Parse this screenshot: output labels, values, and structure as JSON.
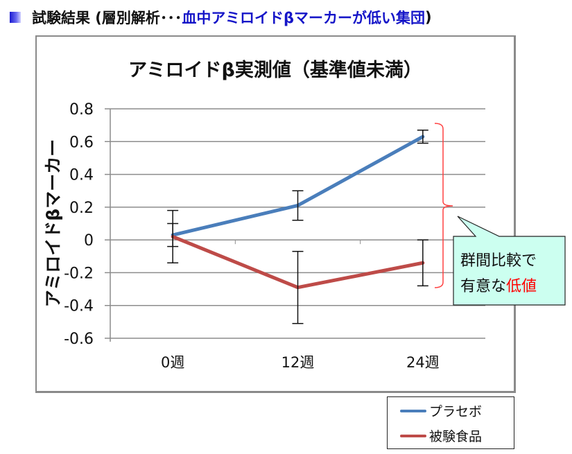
{
  "heading": {
    "prefix": "試験結果 (層別解析･･･",
    "highlight": "血中アミロイドβマーカーが低い集団",
    "suffix": ")"
  },
  "colors": {
    "highlight": "#1515c8",
    "placebo": "#4a7ebb",
    "test_food": "#be4b48",
    "bracket": "#ff4040",
    "callout_bg": "#ccfff0",
    "callout_emphasis": "#ff0000"
  },
  "callout": {
    "line1": "群間比較で",
    "line2_prefix": "有意な",
    "line2_emphasis": "低値"
  },
  "legend": {
    "items": [
      {
        "label": "プラセボ",
        "color": "#4a7ebb"
      },
      {
        "label": "被験食品",
        "color": "#be4b48"
      }
    ]
  },
  "chart_data": {
    "type": "line",
    "title": "アミロイドβ実測値（基準値未満）",
    "xlabel": "",
    "ylabel": "アミロイドβマーカー",
    "categories": [
      "0週",
      "12週",
      "24週"
    ],
    "ylim": [
      -0.6,
      0.8
    ],
    "yticks": [
      "0.8",
      "0.6",
      "0.4",
      "0.2",
      "0",
      "-0.2",
      "-0.4",
      "-0.6"
    ],
    "grid": true,
    "legend_position": "bottom-right, outside",
    "series": [
      {
        "name": "プラセボ",
        "values": [
          0.03,
          0.21,
          0.63
        ],
        "error_upper": [
          0.1,
          0.3,
          0.67
        ],
        "error_lower": [
          -0.04,
          0.12,
          0.59
        ]
      },
      {
        "name": "被験食品",
        "values": [
          0.02,
          -0.29,
          -0.14
        ],
        "error_upper": [
          0.18,
          -0.07,
          0.0
        ],
        "error_lower": [
          -0.14,
          -0.51,
          -0.28
        ]
      }
    ]
  }
}
